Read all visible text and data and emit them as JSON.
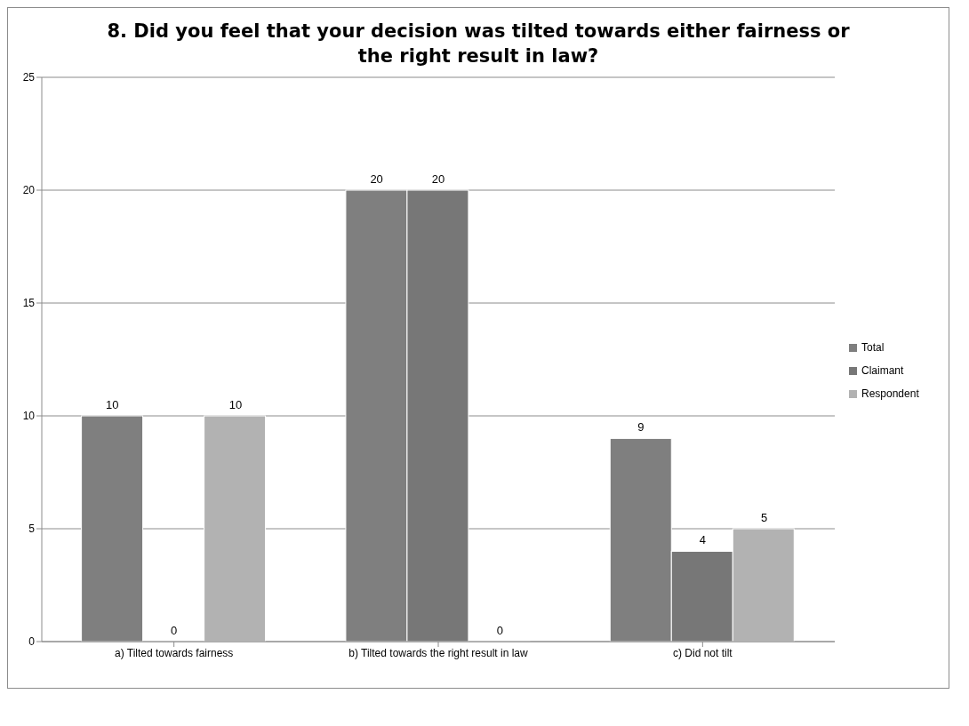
{
  "chart_data": {
    "type": "bar",
    "title": "8. Did you feel that your decision was tilted towards either fairness or the right result in law?",
    "categories": [
      "a) Tilted towards fairness",
      "b) Tilted towards the right result in law",
      "c) Did not tilt"
    ],
    "series": [
      {
        "name": "Total",
        "color": "#7f7f7f",
        "values": [
          10,
          20,
          9
        ]
      },
      {
        "name": "Claimant",
        "color": "#777777",
        "values": [
          0,
          20,
          4
        ]
      },
      {
        "name": "Respondent",
        "color": "#b2b2b2",
        "values": [
          10,
          0,
          5
        ]
      }
    ],
    "ylim": [
      0,
      25
    ],
    "yticks": [
      0,
      5,
      10,
      15,
      20,
      25
    ],
    "grid": "y",
    "legend": "right",
    "data_labels": true
  }
}
